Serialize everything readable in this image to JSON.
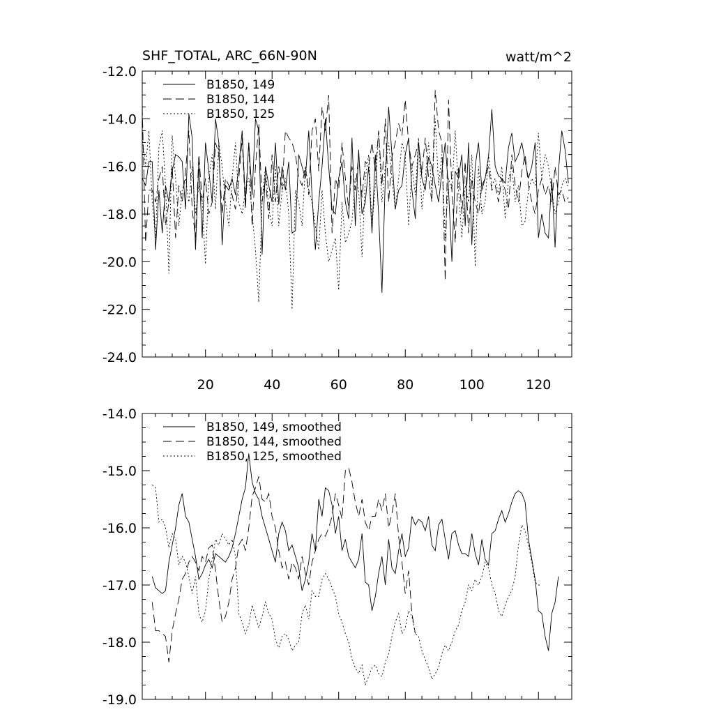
{
  "chart_data": [
    {
      "type": "line",
      "title": "SHF_TOTAL, ARC_66N-90N",
      "units": "watt/m^2",
      "xlim": [
        1,
        130
      ],
      "ylim": [
        -24,
        -12
      ],
      "xticks": [
        20,
        40,
        60,
        80,
        100,
        120
      ],
      "xtick_labels": [
        "20",
        "40",
        "60",
        "80",
        "100",
        "120"
      ],
      "yticks": [
        -12,
        -14,
        -16,
        -18,
        -20,
        -22,
        -24
      ],
      "ytick_labels": [
        "-12.0",
        "-14.0",
        "-16.0",
        "-18.0",
        "-20.0",
        "-22.0",
        "-24.0"
      ],
      "grid": false,
      "legend_position": "top-left",
      "x_start": 1,
      "x_step": 1,
      "series": [
        {
          "name": "B1850, 149",
          "line_style": "solid",
          "color": "#000000",
          "values": [
            -16.5,
            -16.8,
            -15.8,
            -15.8,
            -19.5,
            -17.0,
            -18.8,
            -16.8,
            -17.5,
            -16.2,
            -15.5,
            -15.6,
            -15.8,
            -17.8,
            -13.8,
            -14.8,
            -19.5,
            -15.8,
            -19.0,
            -15.0,
            -16.2,
            -17.5,
            -14.0,
            -15.0,
            -19.3,
            -16.8,
            -17.0,
            -16.5,
            -17.2,
            -16.0,
            -14.5,
            -17.5,
            -15.0,
            -17.2,
            -14.0,
            -14.5,
            -19.7,
            -16.0,
            -16.8,
            -17.5,
            -15.0,
            -17.6,
            -16.0,
            -17.0,
            -15.8,
            -18.8,
            -18.7,
            -15.5,
            -16.0,
            -16.5,
            -14.5,
            -17.2,
            -19.5,
            -17.5,
            -16.0,
            -14.0,
            -16.0,
            -17.8,
            -18.0,
            -16.5,
            -15.8,
            -17.5,
            -18.2,
            -14.8,
            -18.5,
            -15.3,
            -18.0,
            -17.5,
            -16.0,
            -18.8,
            -15.5,
            -18.0,
            -21.3,
            -16.5,
            -13.5,
            -15.5,
            -17.8,
            -17.0,
            -16.8,
            -15.5,
            -14.8,
            -17.0,
            -18.2,
            -15.0,
            -16.5,
            -17.0,
            -15.6,
            -16.0,
            -16.8,
            -17.5,
            -16.2,
            -15.0,
            -17.0,
            -20.0,
            -16.2,
            -16.5,
            -15.5,
            -18.5,
            -15.0,
            -19.3,
            -16.0,
            -15.0,
            -17.0,
            -16.5,
            -15.6,
            -13.6,
            -16.0,
            -16.4,
            -16.5,
            -16.7,
            -15.2,
            -14.6,
            -15.8,
            -15.5,
            -15.0,
            -15.8,
            -16.5,
            -16.0,
            -15.0,
            -19.0,
            -18.0,
            -18.8,
            -19.0,
            -16.5,
            -19.4,
            -16.2,
            -14.5,
            -15.3,
            -16.7
          ]
        },
        {
          "name": "B1850, 144",
          "line_style": "dashed",
          "color": "#000000",
          "values": [
            -13.5,
            -19.2,
            -17.0,
            -17.0,
            -17.5,
            -16.5,
            -16.0,
            -18.5,
            -17.5,
            -16.0,
            -19.0,
            -16.8,
            -17.5,
            -16.2,
            -14.5,
            -17.8,
            -19.0,
            -15.5,
            -17.5,
            -16.5,
            -18.0,
            -17.5,
            -15.0,
            -15.5,
            -18.0,
            -16.5,
            -16.8,
            -17.2,
            -17.8,
            -16.5,
            -14.8,
            -17.8,
            -15.0,
            -18.5,
            -16.0,
            -14.2,
            -17.5,
            -16.5,
            -18.2,
            -15.5,
            -17.5,
            -16.0,
            -17.0,
            -14.5,
            -14.8,
            -15.0,
            -15.5,
            -16.5,
            -16.8,
            -16.0,
            -17.2,
            -14.5,
            -14.0,
            -16.2,
            -13.5,
            -14.5,
            -13.0,
            -18.8,
            -16.5,
            -17.0,
            -15.0,
            -16.5,
            -17.8,
            -16.0,
            -17.0,
            -15.5,
            -17.3,
            -15.8,
            -16.0,
            -15.0,
            -16.2,
            -14.5,
            -16.8,
            -14.0,
            -17.5,
            -15.6,
            -15.0,
            -14.2,
            -14.7,
            -13.2,
            -15.0,
            -16.0,
            -15.5,
            -15.0,
            -16.3,
            -14.8,
            -16.5,
            -17.5,
            -12.8,
            -14.5,
            -15.0,
            -20.8,
            -13.2,
            -17.0,
            -19.2,
            -16.0,
            -18.0,
            -15.8,
            -18.8,
            -16.5,
            -17.5,
            -18.0,
            -16.8,
            -16.5,
            -16.0,
            -17.0,
            -16.8,
            -17.5,
            -16.5,
            -17.0,
            -17.8,
            -15.5,
            -16.8,
            -17.5,
            -16.2,
            -15.5,
            -16.8,
            -17.5,
            -18.0,
            -17.0,
            -16.5,
            -17.2,
            -16.8,
            -17.5,
            -16.0,
            -17.2,
            -17.0,
            -17.5,
            -17.3
          ]
        },
        {
          "name": "B1850, 125",
          "line_style": "dotted",
          "color": "#000000",
          "values": [
            -14.8,
            -16.0,
            -14.5,
            -17.5,
            -19.0,
            -15.2,
            -14.5,
            -16.8,
            -20.5,
            -14.7,
            -16.5,
            -18.5,
            -17.0,
            -16.5,
            -17.5,
            -16.0,
            -18.0,
            -16.8,
            -17.5,
            -20.1,
            -16.5,
            -15.5,
            -17.8,
            -15.0,
            -16.0,
            -17.5,
            -18.5,
            -16.5,
            -15.0,
            -17.5,
            -18.0,
            -17.0,
            -16.5,
            -18.0,
            -19.5,
            -21.7,
            -17.5,
            -16.0,
            -17.8,
            -18.5,
            -16.0,
            -18.5,
            -17.0,
            -16.5,
            -18.0,
            -22.0,
            -17.0,
            -17.5,
            -18.5,
            -16.0,
            -17.0,
            -17.5,
            -18.5,
            -19.5,
            -17.0,
            -18.8,
            -20.0,
            -19.5,
            -19.0,
            -21.2,
            -17.5,
            -19.2,
            -18.8,
            -18.3,
            -16.5,
            -17.0,
            -19.8,
            -16.5,
            -15.5,
            -18.5,
            -16.8,
            -14.5,
            -17.5,
            -16.0,
            -15.0,
            -16.5,
            -17.8,
            -16.5,
            -15.0,
            -15.5,
            -18.5,
            -16.0,
            -17.2,
            -14.8,
            -17.8,
            -16.5,
            -15.0,
            -17.2,
            -14.0,
            -16.8,
            -15.5,
            -19.0,
            -16.5,
            -17.0,
            -14.5,
            -17.0,
            -19.0,
            -16.8,
            -17.5,
            -15.5,
            -20.2,
            -16.0,
            -18.0,
            -17.5,
            -15.5,
            -16.8,
            -16.5,
            -17.2,
            -16.0,
            -18.2,
            -16.5,
            -16.0,
            -17.5,
            -16.8,
            -18.5,
            -18.3,
            -17.0,
            -16.5,
            -16.8,
            -14.6,
            -16.5,
            -15.5,
            -16.0,
            -17.0,
            -18.0,
            -17.5,
            -16.8,
            -16.5,
            -16.9
          ]
        }
      ]
    },
    {
      "type": "line",
      "title": "",
      "xlim": [
        1,
        130
      ],
      "ylim": [
        -19,
        -14
      ],
      "xticks": [
        20,
        40,
        60,
        80,
        100,
        120
      ],
      "yticks": [
        -14,
        -15,
        -16,
        -17,
        -18,
        -19
      ],
      "ytick_labels": [
        "-14.0",
        "-15.0",
        "-16.0",
        "-17.0",
        "-18.0",
        "-19.0"
      ],
      "grid": false,
      "legend_position": "top-left",
      "x_start": 4,
      "x_step": 1,
      "series": [
        {
          "name": "B1850, 149, smoothed",
          "line_style": "solid",
          "color": "#000000",
          "values": [
            -16.85,
            -17.05,
            -17.1,
            -17.15,
            -17.1,
            -16.6,
            -16.3,
            -16.0,
            -15.6,
            -15.4,
            -15.8,
            -15.9,
            -16.2,
            -16.5,
            -16.9,
            -16.8,
            -16.65,
            -16.55,
            -16.7,
            -16.45,
            -16.5,
            -16.55,
            -16.6,
            -16.5,
            -16.35,
            -16.1,
            -15.8,
            -15.5,
            -15.3,
            -14.7,
            -15.2,
            -15.4,
            -15.5,
            -15.8,
            -16.0,
            -16.2,
            -16.4,
            -16.6,
            -16.1,
            -15.9,
            -16.05,
            -16.4,
            -16.3,
            -16.5,
            -16.7,
            -17.1,
            -16.9,
            -16.6,
            -16.1,
            -16.4,
            -15.5,
            -15.8,
            -15.3,
            -15.35,
            -15.6,
            -16.1,
            -15.8,
            -16.4,
            -16.2,
            -16.5,
            -16.6,
            -16.7,
            -16.55,
            -16.1,
            -16.95,
            -17.0,
            -17.45,
            -17.2,
            -16.8,
            -16.5,
            -17.0,
            -16.2,
            -16.7,
            -16.8,
            -16.4,
            -16.1,
            -16.5,
            -16.35,
            -15.8,
            -15.95,
            -15.85,
            -15.9,
            -16.05,
            -15.8,
            -16.3,
            -16.4,
            -15.95,
            -15.85,
            -16.2,
            -16.55,
            -16.1,
            -16.05,
            -16.3,
            -16.45,
            -16.45,
            -16.5,
            -16.1,
            -16.45,
            -16.65,
            -16.2,
            -16.55,
            -16.65,
            -16.1,
            -16.05,
            -15.85,
            -15.7,
            -15.9,
            -15.75,
            -15.55,
            -15.4,
            -15.35,
            -15.4,
            -15.55,
            -16.2,
            -16.55,
            -16.9,
            -17.45,
            -17.5,
            -17.9,
            -18.15,
            -17.5,
            -17.3,
            -16.85
          ]
        },
        {
          "name": "B1850, 144, smoothed",
          "line_style": "dashed",
          "color": "#000000",
          "values": [
            -17.3,
            -17.8,
            -17.8,
            -17.85,
            -17.9,
            -18.35,
            -17.8,
            -17.5,
            -17.25,
            -16.9,
            -16.8,
            -16.6,
            -16.5,
            -16.6,
            -16.75,
            -16.5,
            -16.6,
            -16.35,
            -16.3,
            -16.75,
            -17.25,
            -17.65,
            -17.55,
            -17.3,
            -16.9,
            -16.7,
            -16.3,
            -16.2,
            -16.4,
            -16.0,
            -15.45,
            -15.3,
            -15.1,
            -15.5,
            -15.55,
            -15.4,
            -15.8,
            -16.0,
            -16.4,
            -16.7,
            -16.6,
            -16.9,
            -16.6,
            -16.7,
            -16.9,
            -16.5,
            -16.8,
            -17.0,
            -16.6,
            -16.4,
            -16.2,
            -16.1,
            -16.15,
            -16.0,
            -15.8,
            -15.4,
            -15.6,
            -15.85,
            -15.0,
            -14.95,
            -15.2,
            -15.55,
            -15.8,
            -15.5,
            -15.9,
            -16.05,
            -15.8,
            -15.8,
            -15.5,
            -15.7,
            -15.4,
            -16.0,
            -15.75,
            -15.4,
            -16.15,
            -16.6,
            -17.15,
            -16.75,
            -17.5,
            -17.85
          ]
        },
        {
          "name": "B1850, 125, smoothed",
          "line_style": "dotted",
          "color": "#000000",
          "values": [
            -15.25,
            -15.3,
            -15.9,
            -15.85,
            -16.0,
            -16.35,
            -16.1,
            -16.2,
            -16.65,
            -16.5,
            -16.6,
            -16.85,
            -17.15,
            -16.85,
            -17.5,
            -17.65,
            -17.45,
            -16.9,
            -16.55,
            -16.2,
            -16.3,
            -16.1,
            -16.2,
            -16.3,
            -16.2,
            -16.5,
            -17.5,
            -17.65,
            -17.85,
            -17.7,
            -17.35,
            -17.55,
            -17.75,
            -17.55,
            -17.3,
            -17.5,
            -17.6,
            -17.95,
            -18.1,
            -17.9,
            -17.85,
            -17.95,
            -18.15,
            -18.05,
            -18.0,
            -17.5,
            -17.35,
            -17.6,
            -17.1,
            -17.2,
            -17.2,
            -16.9,
            -16.8,
            -16.9,
            -17.05,
            -17.2,
            -17.5,
            -17.65,
            -17.85,
            -18.0,
            -18.3,
            -18.45,
            -18.55,
            -18.4,
            -18.75,
            -18.6,
            -18.45,
            -18.4,
            -18.55,
            -18.6,
            -18.35,
            -18.2,
            -17.9,
            -17.65,
            -17.5,
            -17.85,
            -17.75,
            -17.45,
            -17.55,
            -17.85,
            -17.9,
            -18.15,
            -18.3,
            -18.45,
            -18.65,
            -18.55,
            -18.45,
            -18.2,
            -18.05,
            -18.15,
            -18.0,
            -17.8,
            -17.7,
            -17.45,
            -17.3,
            -17.0,
            -17.1,
            -16.9,
            -17.0,
            -16.85,
            -16.6,
            -16.7,
            -17.0,
            -17.15,
            -17.45,
            -17.55,
            -17.35,
            -17.2,
            -17.1,
            -16.85,
            -16.3,
            -15.95,
            -16.05,
            -16.3,
            -16.6,
            -16.95,
            -17.0,
            -17.0
          ]
        }
      ]
    }
  ]
}
